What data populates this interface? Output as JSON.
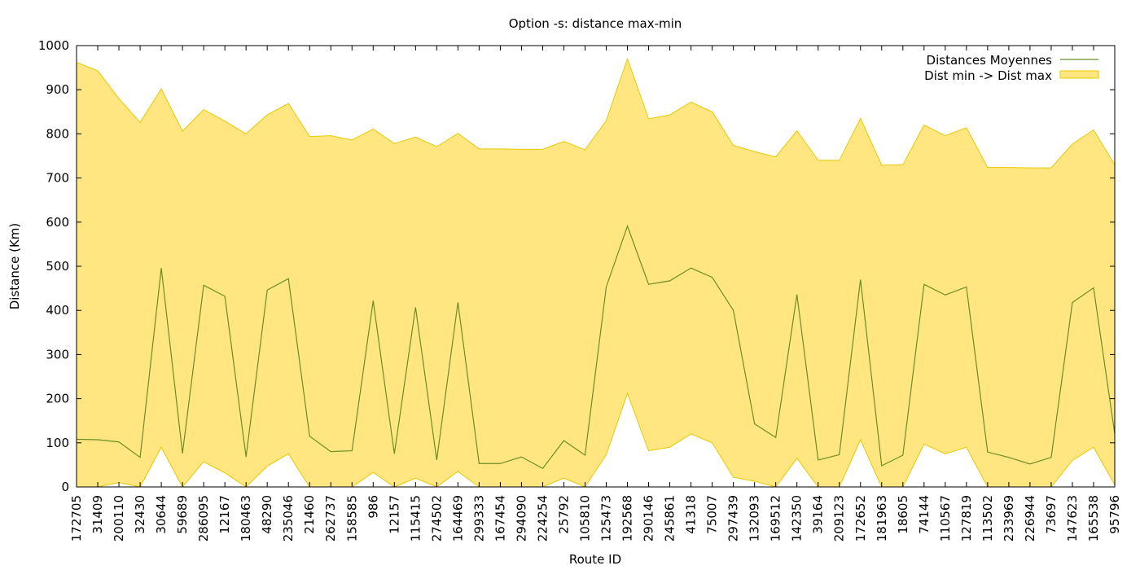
{
  "chart_data": {
    "type": "area",
    "title": "Option -s: distance max-min",
    "xlabel": "Route ID",
    "ylabel": "Distance (Km)",
    "ylim": [
      0,
      1000
    ],
    "yticks": [
      0,
      100,
      200,
      300,
      400,
      500,
      600,
      700,
      800,
      900,
      1000
    ],
    "legend_position": "top-right",
    "grid": false,
    "categories": [
      "172705",
      "31409",
      "200110",
      "32430",
      "30644",
      "59689",
      "286095",
      "12167",
      "180463",
      "48290",
      "235046",
      "21460",
      "262737",
      "158585",
      "986",
      "12157",
      "115415",
      "274502",
      "164469",
      "299333",
      "167454",
      "294090",
      "224254",
      "25792",
      "105810",
      "125473",
      "192568",
      "290146",
      "245861",
      "41318",
      "75007",
      "297439",
      "132093",
      "169512",
      "142350",
      "39164",
      "209123",
      "172652",
      "181963",
      "18605",
      "74144",
      "110567",
      "127819",
      "113502",
      "233969",
      "226944",
      "73697",
      "147623",
      "165538",
      "95796"
    ],
    "series": [
      {
        "name": "Distances Moyennes",
        "kind": "line",
        "color": "#6b8e23",
        "values": [
          108,
          107,
          102,
          67,
          496,
          76,
          457,
          432,
          68,
          446,
          472,
          115,
          80,
          82,
          422,
          75,
          407,
          61,
          418,
          53,
          53,
          68,
          42,
          105,
          72,
          453,
          591,
          459,
          467,
          496,
          475,
          400,
          143,
          112,
          436,
          61,
          73,
          470,
          48,
          72,
          459,
          435,
          453,
          79,
          67,
          52,
          67,
          418,
          451,
          120
        ]
      },
      {
        "name": "Dist min -> Dist max",
        "kind": "band",
        "color": "#ffe680",
        "min": [
          0,
          0,
          10,
          0,
          90,
          0,
          57,
          32,
          0,
          47,
          75,
          0,
          0,
          0,
          33,
          0,
          20,
          0,
          35,
          0,
          0,
          0,
          0,
          20,
          0,
          73,
          212,
          82,
          90,
          120,
          100,
          22,
          13,
          0,
          65,
          0,
          0,
          107,
          0,
          0,
          97,
          75,
          90,
          0,
          0,
          0,
          0,
          60,
          90,
          5
        ],
        "max": [
          962,
          943,
          880,
          826,
          902,
          806,
          855,
          829,
          800,
          843,
          869,
          794,
          796,
          786,
          811,
          778,
          793,
          771,
          801,
          766,
          766,
          765,
          765,
          783,
          764,
          830,
          970,
          834,
          843,
          872,
          850,
          774,
          760,
          748,
          807,
          740,
          740,
          835,
          729,
          730,
          820,
          796,
          814,
          724,
          724,
          723,
          723,
          777,
          809,
          730
        ]
      }
    ]
  }
}
